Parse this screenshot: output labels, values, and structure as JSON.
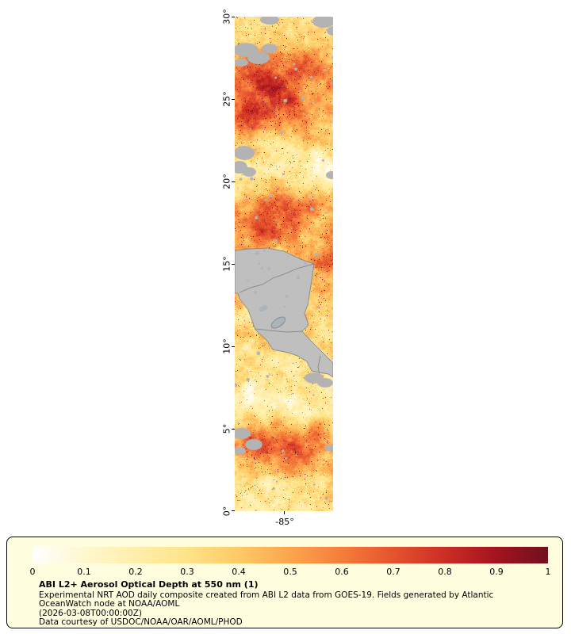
{
  "page": {
    "background": "#ffffff"
  },
  "map": {
    "y_tick_labels": [
      "30°",
      "25°",
      "20°",
      "15°",
      "10°",
      "5°",
      "0°"
    ],
    "x_tick_labels": [
      "-85°"
    ],
    "land_color": "#bfbfbf",
    "land_border_color": "#8a8a8a",
    "cloud_gray_color": "#b3b3b3",
    "lake_color": "#aab4bc"
  },
  "legend": {
    "background": "#ffffe0",
    "border_color": "#000000",
    "tick_labels": [
      "0",
      "0.1",
      "0.2",
      "0.3",
      "0.4",
      "0.5",
      "0.6",
      "0.7",
      "0.8",
      "0.9",
      "1"
    ],
    "title": "ABI L2+ Aerosol Optical Depth at 550 nm (1)",
    "caption_lines": [
      "Experimental NRT AOD daily composite created from ABI L2 data from GOES-19. Fields generated by Atlantic",
      "OceanWatch node at NOAA/AOML",
      "(2026-03-08T00:00:00Z)",
      "Data courtesy of USDOC/NOAA/OAR/AOML/PHOD"
    ]
  },
  "chart_data": {
    "type": "heatmap",
    "title": "ABI L2+ Aerosol Optical Depth at 550 nm (1)",
    "x_axis": {
      "tick_labels": [
        "-85°"
      ],
      "approx_range": [
        -88,
        -82
      ]
    },
    "y_axis": {
      "tick_labels": [
        "30°",
        "25°",
        "20°",
        "15°",
        "10°",
        "5°",
        "0°"
      ],
      "range": [
        0,
        30
      ]
    },
    "colorbar": {
      "range": [
        0,
        1
      ],
      "tick_labels": [
        "0",
        "0.1",
        "0.2",
        "0.3",
        "0.4",
        "0.5",
        "0.6",
        "0.7",
        "0.8",
        "0.9",
        "1"
      ],
      "stops": [
        {
          "v": 0.0,
          "c": "#ffffff"
        },
        {
          "v": 0.1,
          "c": "#fff7cf"
        },
        {
          "v": 0.2,
          "c": "#ffeeab"
        },
        {
          "v": 0.3,
          "c": "#ffe388"
        },
        {
          "v": 0.4,
          "c": "#fec966"
        },
        {
          "v": 0.5,
          "c": "#fca54d"
        },
        {
          "v": 0.6,
          "c": "#f57d3b"
        },
        {
          "v": 0.7,
          "c": "#e5532e"
        },
        {
          "v": 0.8,
          "c": "#cc2d25"
        },
        {
          "v": 0.9,
          "c": "#a3131f"
        },
        {
          "v": 1.0,
          "c": "#70101e"
        }
      ]
    },
    "no_data_color": "#bfbfbf",
    "approx_mean_aod_by_lat_band": [
      {
        "lat_band": "25-30",
        "aod": 0.45
      },
      {
        "lat_band": "20-25",
        "aod": 0.3
      },
      {
        "lat_band": "15-20",
        "aod": 0.45
      },
      {
        "lat_band": "10-15",
        "aod": 0.38
      },
      {
        "lat_band": "5-10",
        "aod": 0.25
      },
      {
        "lat_band": "0-5",
        "aod": 0.4
      }
    ]
  }
}
